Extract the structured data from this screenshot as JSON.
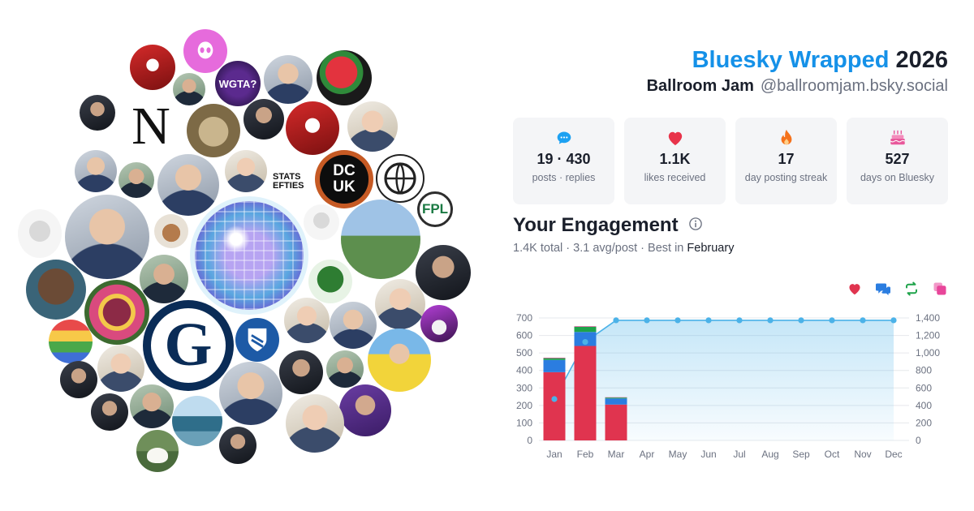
{
  "header": {
    "brand": "Bluesky Wrapped",
    "year": "2026",
    "display_name": "Ballroom Jam",
    "handle": "@ballroomjam.bsky.social"
  },
  "stats": [
    {
      "icon": "speech-bubble-icon",
      "value": "19 · 430",
      "label": "posts · replies",
      "color": "#1da1f2"
    },
    {
      "icon": "heart-icon",
      "value": "1.1K",
      "label": "likes received",
      "color": "#e8334a"
    },
    {
      "icon": "flame-icon",
      "value": "17",
      "label": "day posting streak",
      "color": "#f5721c"
    },
    {
      "icon": "cake-icon",
      "value": "527",
      "label": "days on Bluesky",
      "color": "#e8589b"
    }
  ],
  "engagement": {
    "title": "Your Engagement",
    "total": "1.4K total",
    "avg": "3.1 avg/post",
    "best_prefix": "Best in",
    "best_month": "February",
    "separator": " · "
  },
  "bubbles": {
    "n_label": "N",
    "dcuk_label": "DC UK",
    "wgta_label": "WGTA?",
    "stats_label": "STATS EFTIES",
    "fpl_label": "FPL",
    "guardian_label": "G"
  },
  "colors": {
    "likes": "#e0344f",
    "replies": "#2b7de0",
    "reposts": "#1ea34a",
    "quotes": "#e8469a",
    "cumulative": "#4bb2e8",
    "brand": "#1591e8"
  },
  "chart_data": {
    "type": "bar",
    "categories": [
      "Jan",
      "Feb",
      "Mar",
      "Apr",
      "May",
      "Jun",
      "Jul",
      "Aug",
      "Sep",
      "Oct",
      "Nov",
      "Dec"
    ],
    "series": [
      {
        "key": "likes",
        "values": [
          390,
          540,
          205,
          0,
          0,
          0,
          0,
          0,
          0,
          0,
          0,
          0
        ]
      },
      {
        "key": "replies",
        "values": [
          70,
          80,
          35,
          0,
          0,
          0,
          0,
          0,
          0,
          0,
          0,
          0
        ]
      },
      {
        "key": "reposts",
        "values": [
          10,
          30,
          5,
          0,
          0,
          0,
          0,
          0,
          0,
          0,
          0,
          0
        ]
      },
      {
        "key": "quotes",
        "values": [
          3,
          3,
          2,
          0,
          0,
          0,
          0,
          0,
          0,
          0,
          0,
          0
        ]
      },
      {
        "key": "cumulative",
        "type": "area",
        "axis": "right",
        "values": [
          473,
          1126,
          1373,
          1373,
          1373,
          1373,
          1373,
          1373,
          1373,
          1373,
          1373,
          1373
        ]
      }
    ],
    "ylim_left": [
      0,
      700
    ],
    "yticks_left": [
      "0",
      "100",
      "200",
      "300",
      "400",
      "500",
      "600",
      "700"
    ],
    "ylim_right": [
      0,
      1400
    ],
    "yticks_right": [
      "0",
      "200",
      "400",
      "600",
      "800",
      "1,000",
      "1,200",
      "1,400"
    ],
    "grid": true,
    "legend": "top-right"
  }
}
